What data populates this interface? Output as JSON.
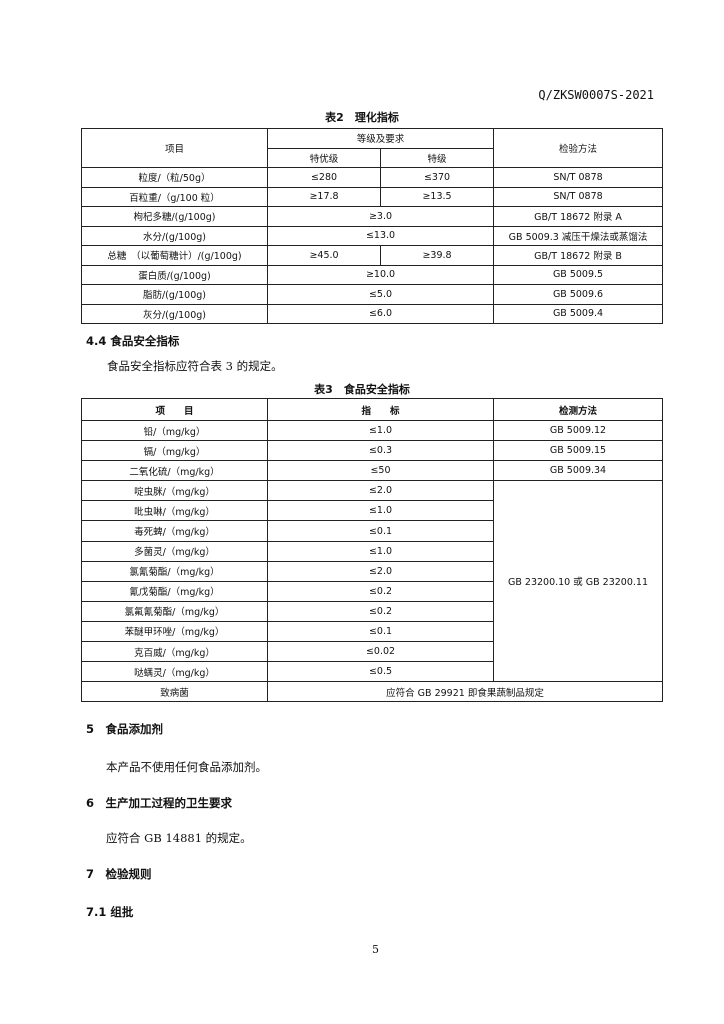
{
  "doc_number": "Q/ZKSW0007S-2021",
  "table2": {
    "caption": "表2　理化指标",
    "headers": {
      "item": "项目",
      "grade_group": "等级及要求",
      "grade1": "特优级",
      "grade2": "特级",
      "method": "检验方法"
    },
    "rows": [
      {
        "item": "粒度/（粒/50g）",
        "grade1": "≤280",
        "grade2": "≤370",
        "method": "SN/T 0878"
      },
      {
        "item": "百粒重/（g/100 粒）",
        "grade1": "≥17.8",
        "grade2": "≥13.5",
        "method": "SN/T 0878"
      },
      {
        "item": "枸杞多糖/(g/100g)",
        "value": "≥3.0",
        "method": "GB/T 18672 附录 A"
      },
      {
        "item": "水分/(g/100g)",
        "value": "≤13.0",
        "method": "GB 5009.3 减压干燥法或蒸馏法"
      },
      {
        "item": "总糖　（以葡萄糖计）/(g/100g)",
        "grade1": "≥45.0",
        "grade2": "≥39.8",
        "method": "GB/T 18672 附录 B"
      },
      {
        "item": "蛋白质/(g/100g)",
        "value": "≥10.0",
        "method": "GB 5009.5"
      },
      {
        "item": "脂肪/(g/100g)",
        "value": "≤5.0",
        "method": "GB 5009.6"
      },
      {
        "item": "灰分/(g/100g)",
        "value": "≤6.0",
        "method": "GB 5009.4"
      }
    ]
  },
  "section_4_4": {
    "heading": "4.4 食品安全指标",
    "text": "食品安全指标应符合表 3 的规定。"
  },
  "table3": {
    "caption": "表3　食品安全指标",
    "headers": {
      "item": "项　　目",
      "value": "指　　标",
      "method": "检测方法"
    },
    "rows": [
      {
        "item": "铅/（mg/kg）",
        "value": "≤1.0",
        "method": "GB 5009.12"
      },
      {
        "item": "镉/（mg/kg）",
        "value": "≤0.3",
        "method": "GB 5009.15"
      },
      {
        "item": "二氧化硫/（mg/kg）",
        "value": "≤50",
        "method": "GB 5009.34"
      },
      {
        "item": "啶虫脒/（mg/kg）",
        "value": "≤2.0"
      },
      {
        "item": "吡虫啉/（mg/kg）",
        "value": "≤1.0"
      },
      {
        "item": "毒死蜱/（mg/kg）",
        "value": "≤0.1"
      },
      {
        "item": "多菌灵/（mg/kg）",
        "value": "≤1.0"
      },
      {
        "item": "氯氰菊酯/（mg/kg）",
        "value": "≤2.0"
      },
      {
        "item": "氰戊菊酯/（mg/kg）",
        "value": "≤0.2"
      },
      {
        "item": "氯氟氰菊酯/（mg/kg）",
        "value": "≤0.2"
      },
      {
        "item": "苯醚甲环唑/（mg/kg）",
        "value": "≤0.1"
      },
      {
        "item": "克百威/（mg/kg）",
        "value": "≤0.02"
      },
      {
        "item": "哒螨灵/（mg/kg）",
        "value": "≤0.5"
      }
    ],
    "pesticide_method": "GB 23200.10 或 GB 23200.11",
    "pathogen": {
      "item": "致病菌",
      "value": "应符合 GB 29921 即食果蔬制品规定"
    }
  },
  "section_5": {
    "heading": "5　食品添加剂",
    "text": "本产品不使用任何食品添加剂。"
  },
  "section_6": {
    "heading": "6　生产加工过程的卫生要求",
    "text": "应符合  GB 14881 的规定。"
  },
  "section_7": {
    "heading": "7　检验规则"
  },
  "section_7_1": {
    "heading": "7.1 组批"
  },
  "page_number": "5"
}
